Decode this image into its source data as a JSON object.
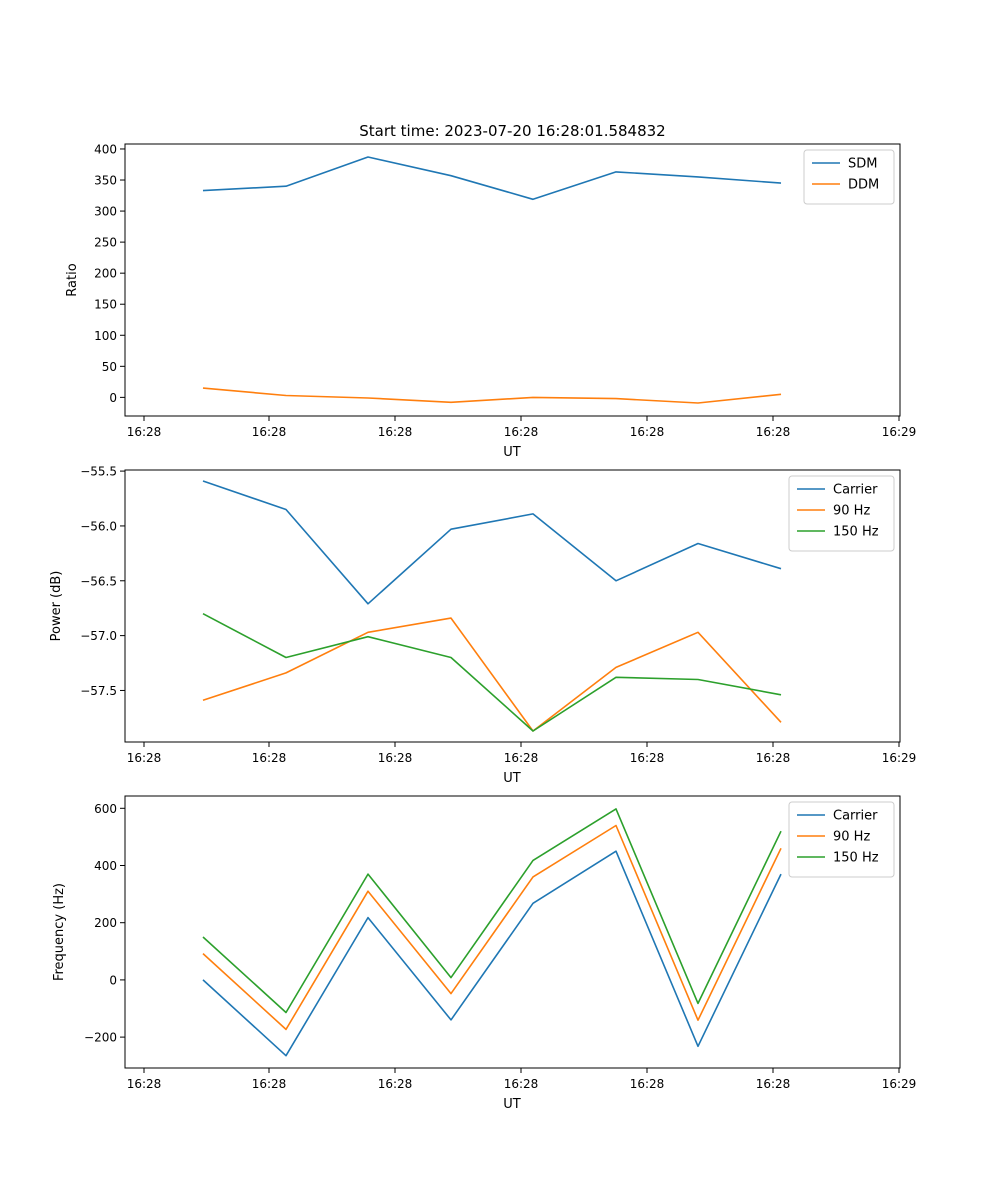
{
  "chart_data": [
    {
      "type": "line",
      "title": "Start time: 2023-07-20 16:28:01.584832",
      "xlabel": "UT",
      "ylabel": "Ratio",
      "xtick_labels": [
        "16:28",
        "16:28",
        "16:28",
        "16:28",
        "16:28",
        "16:28",
        "16:29"
      ],
      "ylim": [
        -30,
        408
      ],
      "yticks": [
        0,
        50,
        100,
        150,
        200,
        250,
        300,
        350,
        400
      ],
      "yticklabels": [
        "0",
        "50",
        "100",
        "150",
        "200",
        "250",
        "300",
        "350",
        "400"
      ],
      "legend": "top-right",
      "series": [
        {
          "name": "SDM",
          "color": "#1f77b4",
          "values": [
            333,
            340,
            387,
            357,
            319,
            363,
            355,
            345
          ]
        },
        {
          "name": "DDM",
          "color": "#ff7f0e",
          "values": [
            15,
            3,
            -1,
            -8,
            0,
            -2,
            -9,
            5
          ]
        }
      ]
    },
    {
      "type": "line",
      "title": "",
      "xlabel": "UT",
      "ylabel": "Power (dB)",
      "xtick_labels": [
        "16:28",
        "16:28",
        "16:28",
        "16:28",
        "16:28",
        "16:28",
        "16:29"
      ],
      "ylim": [
        -57.97,
        -55.49
      ],
      "yticks": [
        -55.5,
        -56.0,
        -56.5,
        -57.0,
        -57.5
      ],
      "yticklabels": [
        "−55.5",
        "−56.0",
        "−56.5",
        "−57.0",
        "−57.5"
      ],
      "legend": "top-right",
      "series": [
        {
          "name": "Carrier",
          "color": "#1f77b4",
          "values": [
            -55.59,
            -55.85,
            -56.71,
            -56.03,
            -55.89,
            -56.5,
            -56.16,
            -56.39
          ]
        },
        {
          "name": "90 Hz",
          "color": "#ff7f0e",
          "values": [
            -57.59,
            -57.34,
            -56.97,
            -56.84,
            -57.87,
            -57.29,
            -56.97,
            -57.79
          ]
        },
        {
          "name": "150 Hz",
          "color": "#2ca02c",
          "values": [
            -56.8,
            -57.2,
            -57.01,
            -57.2,
            -57.87,
            -57.38,
            -57.4,
            -57.54
          ]
        }
      ]
    },
    {
      "type": "line",
      "title": "",
      "xlabel": "UT",
      "ylabel": "Frequency (Hz)",
      "xtick_labels": [
        "16:28",
        "16:28",
        "16:28",
        "16:28",
        "16:28",
        "16:28",
        "16:29"
      ],
      "ylim": [
        -308,
        643
      ],
      "yticks": [
        -200,
        0,
        200,
        400,
        600
      ],
      "yticklabels": [
        "−200",
        "0",
        "200",
        "400",
        "600"
      ],
      "legend": "top-right",
      "series": [
        {
          "name": "Carrier",
          "color": "#1f77b4",
          "values": [
            0,
            -265,
            218,
            -140,
            268,
            450,
            -232,
            370
          ]
        },
        {
          "name": "90 Hz",
          "color": "#ff7f0e",
          "values": [
            92,
            -173,
            310,
            -48,
            360,
            540,
            -141,
            460
          ]
        },
        {
          "name": "150 Hz",
          "color": "#2ca02c",
          "values": [
            150,
            -114,
            370,
            8,
            418,
            598,
            -82,
            520
          ]
        }
      ]
    }
  ]
}
